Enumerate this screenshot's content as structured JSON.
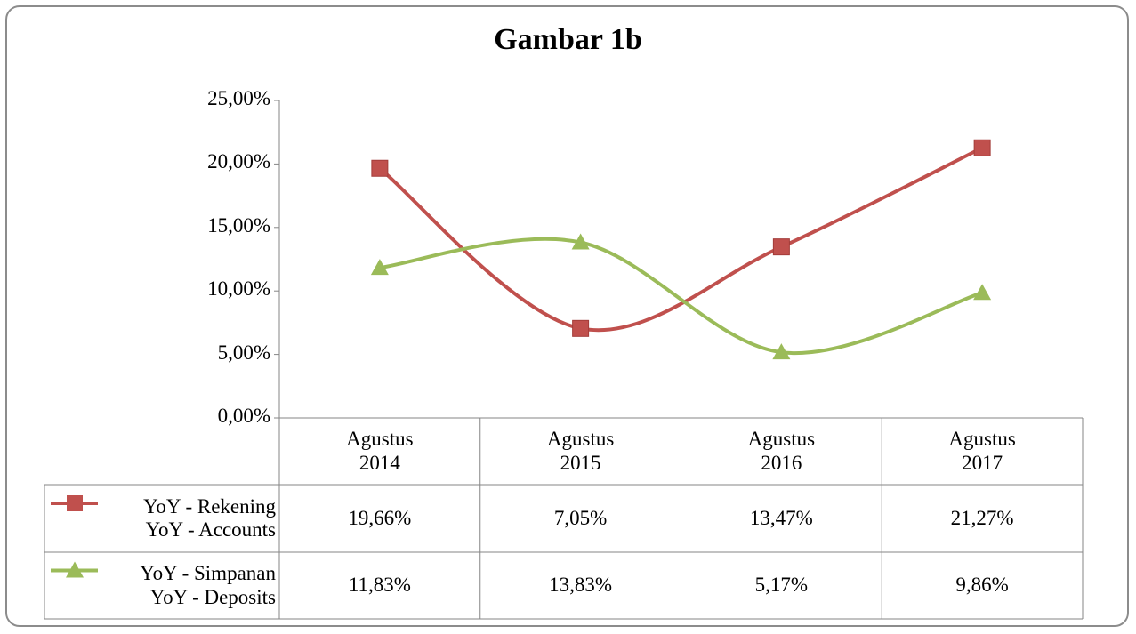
{
  "chart_data": {
    "type": "line",
    "title": "Gambar 1b",
    "categories": [
      "Agustus\n2014",
      "Agustus\n2015",
      "Agustus\n2016",
      "Agustus\n2017"
    ],
    "series": [
      {
        "name": "YoY - Rekening\nYoY - Accounts",
        "color": "#c0504d",
        "marker": "square",
        "values": [
          19.66,
          7.05,
          13.47,
          21.27
        ],
        "value_labels": [
          "19,66%",
          "7,05%",
          "13,47%",
          "21,27%"
        ]
      },
      {
        "name": "YoY - Simpanan\nYoY - Deposits",
        "color": "#9bbb59",
        "marker": "triangle",
        "values": [
          11.83,
          13.83,
          5.17,
          9.86
        ],
        "value_labels": [
          "11,83%",
          "13,83%",
          "5,17%",
          "9,86%"
        ]
      }
    ],
    "ylim": [
      0,
      25
    ],
    "yticks": [
      {
        "value": 0,
        "label": "0,00%"
      },
      {
        "value": 5,
        "label": "5,00%"
      },
      {
        "value": 10,
        "label": "10,00%"
      },
      {
        "value": 15,
        "label": "15,00%"
      },
      {
        "value": 20,
        "label": "20,00%"
      },
      {
        "value": 25,
        "label": "25,00%"
      }
    ],
    "smooth": true,
    "grid": false,
    "data_table": true
  }
}
